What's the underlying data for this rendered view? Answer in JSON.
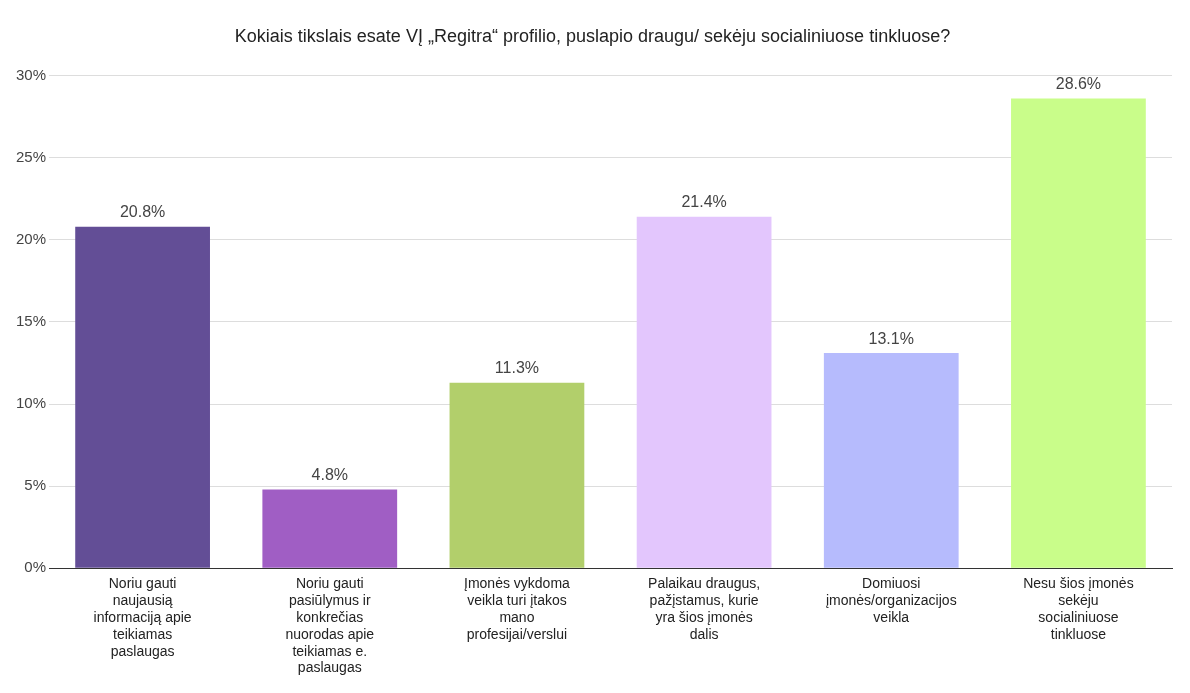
{
  "chart_data": {
    "type": "bar",
    "title": "Kokiais tikslais esate VĮ „Regitra“ profilio, puslapio draugu/ sekėju socialiniuose tinkluose?",
    "categories": [
      "Noriu gauti naujausią informaciją apie teikiamas paslaugas",
      "Noriu gauti pasiūlymus ir konkrečias nuorodas apie teikiamas e. paslaugas",
      "Įmonės vykdoma veikla turi įtakos mano profesijai/verslui",
      "Palaikau draugus, pažįstamus, kurie yra šios įmonės dalis",
      "Domiuosi įmonės/organizacijos veikla",
      "Nesu šios įmonės sekėju socialiniuose tinkluose"
    ],
    "values": [
      20.8,
      4.8,
      11.3,
      21.4,
      13.1,
      28.6
    ],
    "colors": [
      "#634e96",
      "#a05ec4",
      "#b2cf6b",
      "#e3c6fd",
      "#b6bbfd",
      "#c9fd8a"
    ],
    "value_labels": [
      "20.8%",
      "4.8%",
      "11.3%",
      "21.4%",
      "13.1%",
      "28.6%"
    ],
    "ylim": [
      0,
      30
    ],
    "yticks": [
      {
        "value": 0,
        "label": "0%"
      },
      {
        "value": 5,
        "label": "5%"
      },
      {
        "value": 10,
        "label": "10%"
      },
      {
        "value": 15,
        "label": "15%"
      },
      {
        "value": 20,
        "label": "20%"
      },
      {
        "value": 25,
        "label": "25%"
      },
      {
        "value": 30,
        "label": "30%"
      }
    ],
    "grid": "y",
    "legend": false
  }
}
